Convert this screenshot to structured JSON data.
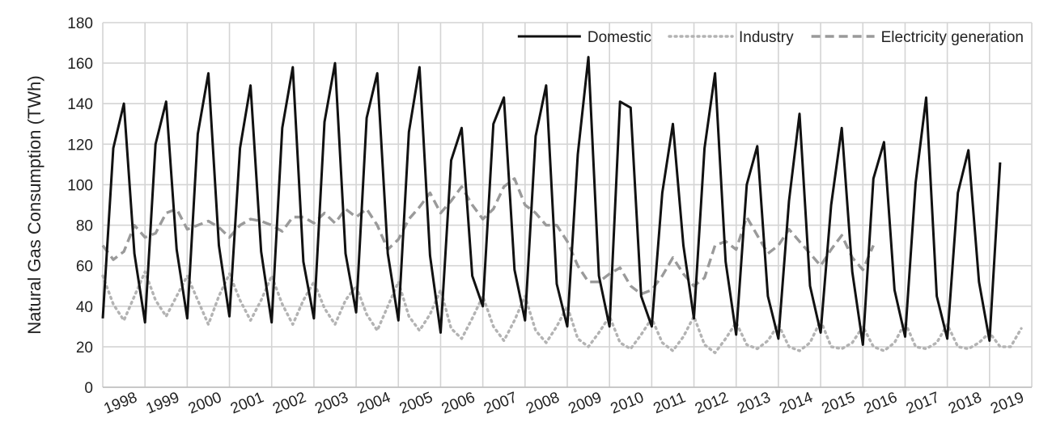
{
  "chart_data": {
    "type": "line",
    "title": "",
    "xlabel": "",
    "ylabel": "Natural Gas Consumption (TWh)",
    "ylim": [
      0,
      180
    ],
    "yticks": [
      0,
      20,
      40,
      60,
      80,
      100,
      120,
      140,
      160,
      180
    ],
    "xticks": [
      "1998",
      "1999",
      "2000",
      "2001",
      "2002",
      "2003",
      "2004",
      "2005",
      "2006",
      "2007",
      "2008",
      "2009",
      "2010",
      "2011",
      "2012",
      "2013",
      "2014",
      "2015",
      "2016",
      "2017",
      "2018",
      "2019"
    ],
    "x_unit": "quarter",
    "x_start": "1998 Q1",
    "grid": true,
    "legend_position": "top-right",
    "series": [
      {
        "name": "Domestic",
        "style": "solid",
        "color": "#111111",
        "values": [
          34,
          118,
          140,
          66,
          32,
          120,
          141,
          68,
          34,
          125,
          155,
          70,
          35,
          118,
          149,
          67,
          32,
          128,
          158,
          62,
          34,
          131,
          160,
          66,
          37,
          133,
          155,
          66,
          33,
          126,
          158,
          65,
          27,
          112,
          128,
          55,
          40,
          130,
          143,
          58,
          33,
          124,
          149,
          51,
          30,
          115,
          163,
          55,
          30,
          141,
          138,
          45,
          30,
          96,
          130,
          70,
          34,
          118,
          155,
          62,
          26,
          100,
          119,
          45,
          24,
          92,
          135,
          50,
          27,
          90,
          128,
          57,
          21,
          103,
          121,
          48,
          25,
          101,
          143,
          45,
          24,
          96,
          117,
          52,
          23,
          111
        ]
      },
      {
        "name": "Industry",
        "style": "dotted",
        "color": "#b3b3b3",
        "values": [
          55,
          41,
          33,
          45,
          57,
          43,
          35,
          45,
          55,
          43,
          31,
          45,
          56,
          43,
          33,
          43,
          55,
          41,
          31,
          43,
          52,
          39,
          31,
          43,
          50,
          36,
          28,
          40,
          52,
          35,
          28,
          36,
          48,
          29,
          24,
          34,
          45,
          30,
          23,
          33,
          45,
          28,
          22,
          30,
          40,
          24,
          20,
          27,
          35,
          22,
          19,
          26,
          34,
          22,
          18,
          25,
          35,
          21,
          17,
          24,
          32,
          21,
          19,
          23,
          31,
          20,
          18,
          22,
          33,
          20,
          19,
          22,
          30,
          20,
          18,
          22,
          32,
          20,
          19,
          22,
          31,
          20,
          19,
          22,
          27,
          20,
          20,
          29
        ]
      },
      {
        "name": "Electricity generation",
        "style": "dashed",
        "color": "#9a9a9a",
        "values": [
          70,
          63,
          67,
          80,
          74,
          76,
          86,
          88,
          78,
          80,
          82,
          79,
          74,
          80,
          83,
          82,
          80,
          77,
          84,
          84,
          81,
          86,
          81,
          88,
          84,
          88,
          80,
          68,
          73,
          83,
          89,
          96,
          86,
          92,
          99,
          90,
          83,
          88,
          99,
          103,
          90,
          86,
          80,
          80,
          72,
          60,
          52,
          52,
          56,
          59,
          50,
          46,
          48,
          55,
          64,
          56,
          50,
          54,
          70,
          72,
          68,
          84,
          75,
          66,
          70,
          78,
          72,
          66,
          60,
          68,
          75,
          64,
          58,
          70
        ]
      }
    ]
  }
}
